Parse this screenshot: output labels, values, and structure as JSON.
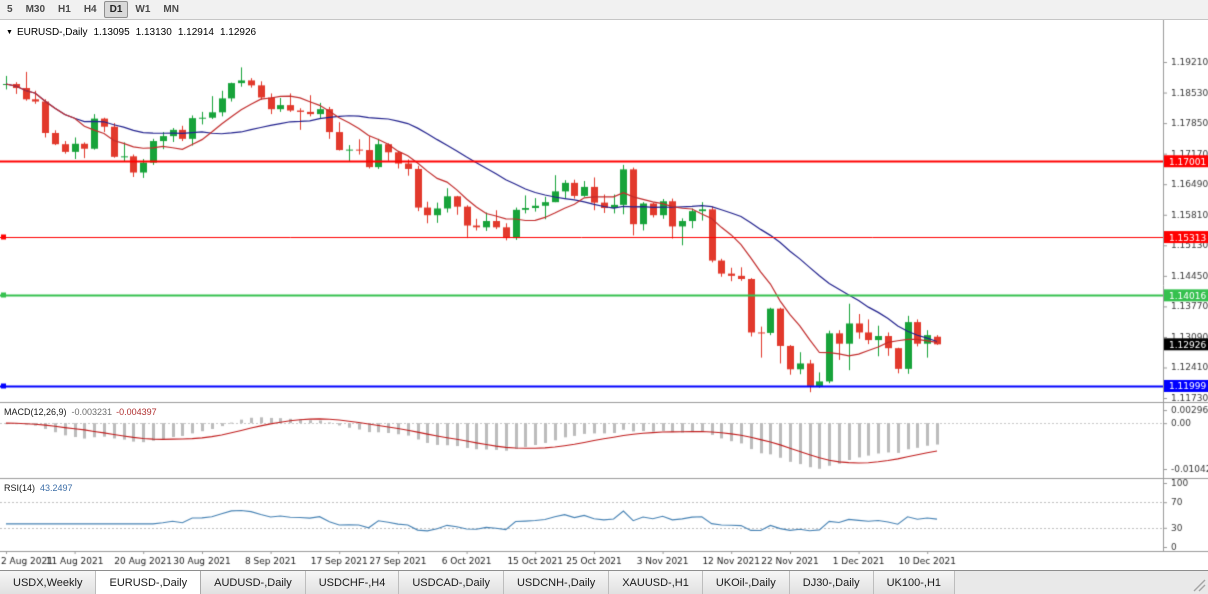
{
  "toolbar": {
    "timeframes": [
      {
        "label": "5",
        "active": false
      },
      {
        "label": "M30",
        "active": false
      },
      {
        "label": "H1",
        "active": false
      },
      {
        "label": "H4",
        "active": false
      },
      {
        "label": "D1",
        "active": true
      },
      {
        "label": "W1",
        "active": false
      },
      {
        "label": "MN",
        "active": false
      }
    ]
  },
  "chart_header": {
    "symbol_period": "EURUSD-,Daily",
    "open": "1.13095",
    "high": "1.13130",
    "low": "1.12914",
    "close": "1.12926"
  },
  "indicators": {
    "macd": {
      "label": "MACD(12,26,9)",
      "value_main": "-0.003231",
      "value_signal": "-0.004397",
      "axis_labels": [
        {
          "text": "0.002966",
          "value": 0.002966
        },
        {
          "text": "0.00",
          "value": 0
        },
        {
          "text": "-0.010422",
          "value": -0.010422
        }
      ]
    },
    "rsi": {
      "label": "RSI(14)",
      "value": "43.2497",
      "levels": [
        70,
        30
      ],
      "axis_labels": [
        {
          "text": "100",
          "value": 100
        },
        {
          "text": "70",
          "value": 70
        },
        {
          "text": "30",
          "value": 30
        },
        {
          "text": "0",
          "value": 0
        }
      ]
    }
  },
  "chart_data": {
    "type": "candlestick",
    "title": "EURUSD-,Daily",
    "ylim": [
      1.11642,
      1.20145
    ],
    "y_axis_labels": [
      "1.19210",
      "1.18530",
      "1.17850",
      "1.17170",
      "1.16490",
      "1.15810",
      "1.15130",
      "1.14450",
      "1.13770",
      "1.13090",
      "1.12410",
      "1.11730"
    ],
    "x_ticks": [
      {
        "label": "2 Aug 2021",
        "i": 0
      },
      {
        "label": "11 Aug 2021",
        "i": 7
      },
      {
        "label": "20 Aug 2021",
        "i": 14
      },
      {
        "label": "30 Aug 2021",
        "i": 20
      },
      {
        "label": "8 Sep 2021",
        "i": 27
      },
      {
        "label": "17 Sep 2021",
        "i": 34
      },
      {
        "label": "27 Sep 2021",
        "i": 40
      },
      {
        "label": "6 Oct 2021",
        "i": 47
      },
      {
        "label": "15 Oct 2021",
        "i": 54
      },
      {
        "label": "25 Oct 2021",
        "i": 60
      },
      {
        "label": "3 Nov 2021",
        "i": 67
      },
      {
        "label": "12 Nov 2021",
        "i": 74
      },
      {
        "label": "22 Nov 2021",
        "i": 80
      },
      {
        "label": "1 Dec 2021",
        "i": 87
      },
      {
        "label": "10 Dec 2021",
        "i": 94
      }
    ],
    "hlines": [
      {
        "price": 1.17001,
        "label": "1.17001",
        "color": "#ff0000",
        "width": 2,
        "handle": false
      },
      {
        "price": 1.15313,
        "label": "1.15313",
        "color": "#ff0000",
        "width": 1,
        "handle": true
      },
      {
        "price": 1.14016,
        "label": "1.14016",
        "color": "#35c14e",
        "width": 2,
        "handle": true
      },
      {
        "price": 1.11999,
        "label": "1.11999",
        "color": "#0000ff",
        "width": 2,
        "handle": true
      }
    ],
    "current_price": {
      "value": 1.12926,
      "label": "1.12926",
      "bg": "#000000"
    },
    "moving_averages": [
      {
        "name": "ma-slow",
        "period": 21,
        "color": "#22228e"
      },
      {
        "name": "ma-fast",
        "period": 8,
        "color": "#c22c2c"
      }
    ],
    "candles": [
      [
        1.187,
        1.189,
        1.186,
        1.1872
      ],
      [
        1.1872,
        1.1876,
        1.185,
        1.1863
      ],
      [
        1.1863,
        1.1899,
        1.1835,
        1.1838
      ],
      [
        1.1838,
        1.1857,
        1.1828,
        1.1833
      ],
      [
        1.1833,
        1.1838,
        1.1753,
        1.1763
      ],
      [
        1.1763,
        1.1769,
        1.1736,
        1.1738
      ],
      [
        1.1738,
        1.1745,
        1.1717,
        1.1721
      ],
      [
        1.1721,
        1.1753,
        1.1705,
        1.1739
      ],
      [
        1.1739,
        1.1742,
        1.1707,
        1.1728
      ],
      [
        1.1728,
        1.1805,
        1.1726,
        1.1795
      ],
      [
        1.1795,
        1.1797,
        1.1765,
        1.1777
      ],
      [
        1.1777,
        1.1785,
        1.1708,
        1.171
      ],
      [
        1.171,
        1.1742,
        1.17,
        1.1711
      ],
      [
        1.1711,
        1.1715,
        1.1665,
        1.1675
      ],
      [
        1.1675,
        1.1705,
        1.1663,
        1.1697
      ],
      [
        1.1697,
        1.175,
        1.1692,
        1.1745
      ],
      [
        1.1745,
        1.1765,
        1.1727,
        1.1756
      ],
      [
        1.1756,
        1.1774,
        1.1743,
        1.177
      ],
      [
        1.177,
        1.1779,
        1.1745,
        1.175
      ],
      [
        1.175,
        1.1802,
        1.1735,
        1.1796
      ],
      [
        1.1796,
        1.181,
        1.1782,
        1.1797
      ],
      [
        1.1797,
        1.1845,
        1.1794,
        1.1809
      ],
      [
        1.1809,
        1.1857,
        1.18,
        1.184
      ],
      [
        1.184,
        1.1875,
        1.1833,
        1.1874
      ],
      [
        1.1874,
        1.1909,
        1.1866,
        1.188
      ],
      [
        1.188,
        1.1885,
        1.1864,
        1.1869
      ],
      [
        1.1869,
        1.1878,
        1.1837,
        1.1842
      ],
      [
        1.1842,
        1.1851,
        1.1805,
        1.1816
      ],
      [
        1.1816,
        1.1841,
        1.181,
        1.1825
      ],
      [
        1.1825,
        1.1851,
        1.181,
        1.1813
      ],
      [
        1.1813,
        1.1818,
        1.177,
        1.181
      ],
      [
        1.181,
        1.1847,
        1.18,
        1.1805
      ],
      [
        1.1805,
        1.183,
        1.1795,
        1.1816
      ],
      [
        1.1816,
        1.1821,
        1.175,
        1.1765
      ],
      [
        1.1765,
        1.1787,
        1.1724,
        1.1725
      ],
      [
        1.1725,
        1.1736,
        1.17,
        1.1726
      ],
      [
        1.1726,
        1.1749,
        1.1715,
        1.1725
      ],
      [
        1.1725,
        1.1756,
        1.1684,
        1.1687
      ],
      [
        1.1687,
        1.175,
        1.1683,
        1.1738
      ],
      [
        1.1738,
        1.174,
        1.1701,
        1.172
      ],
      [
        1.172,
        1.1722,
        1.1684,
        1.1695
      ],
      [
        1.1695,
        1.1704,
        1.1668,
        1.1683
      ],
      [
        1.1683,
        1.169,
        1.1589,
        1.1597
      ],
      [
        1.1597,
        1.161,
        1.1562,
        1.158
      ],
      [
        1.158,
        1.1608,
        1.1563,
        1.1595
      ],
      [
        1.1595,
        1.164,
        1.1586,
        1.1622
      ],
      [
        1.1622,
        1.1623,
        1.1581,
        1.1599
      ],
      [
        1.1599,
        1.1602,
        1.1529,
        1.1557
      ],
      [
        1.1557,
        1.1572,
        1.1546,
        1.1553
      ],
      [
        1.1553,
        1.1586,
        1.1545,
        1.1567
      ],
      [
        1.1567,
        1.1591,
        1.1549,
        1.1553
      ],
      [
        1.1553,
        1.1562,
        1.1524,
        1.1529
      ],
      [
        1.1529,
        1.1597,
        1.1525,
        1.1592
      ],
      [
        1.1592,
        1.1624,
        1.1584,
        1.1596
      ],
      [
        1.1596,
        1.1618,
        1.1588,
        1.1601
      ],
      [
        1.1601,
        1.1621,
        1.1571,
        1.1609
      ],
      [
        1.1609,
        1.1669,
        1.1609,
        1.1633
      ],
      [
        1.1633,
        1.1658,
        1.1617,
        1.1652
      ],
      [
        1.1652,
        1.1659,
        1.1617,
        1.1623
      ],
      [
        1.1623,
        1.1656,
        1.1621,
        1.1643
      ],
      [
        1.1643,
        1.1664,
        1.1591,
        1.1608
      ],
      [
        1.1608,
        1.1626,
        1.1585,
        1.1596
      ],
      [
        1.1596,
        1.1626,
        1.1584,
        1.1603
      ],
      [
        1.1603,
        1.1692,
        1.1582,
        1.1682
      ],
      [
        1.1682,
        1.1686,
        1.1535,
        1.156
      ],
      [
        1.156,
        1.1609,
        1.1546,
        1.1606
      ],
      [
        1.1606,
        1.1608,
        1.1575,
        1.158
      ],
      [
        1.158,
        1.1616,
        1.1572,
        1.1611
      ],
      [
        1.1611,
        1.1617,
        1.1528,
        1.1555
      ],
      [
        1.1555,
        1.1573,
        1.1513,
        1.1567
      ],
      [
        1.1567,
        1.1595,
        1.1551,
        1.1589
      ],
      [
        1.1589,
        1.1609,
        1.1568,
        1.1593
      ],
      [
        1.1593,
        1.1599,
        1.1475,
        1.1479
      ],
      [
        1.1479,
        1.1483,
        1.1443,
        1.145
      ],
      [
        1.145,
        1.1463,
        1.1433,
        1.1445
      ],
      [
        1.1445,
        1.1464,
        1.1434,
        1.1438
      ],
      [
        1.1438,
        1.144,
        1.131,
        1.1319
      ],
      [
        1.1319,
        1.1332,
        1.1263,
        1.1318
      ],
      [
        1.1318,
        1.1374,
        1.1313,
        1.1372
      ],
      [
        1.1372,
        1.1374,
        1.125,
        1.1289
      ],
      [
        1.1289,
        1.1291,
        1.1225,
        1.1237
      ],
      [
        1.1237,
        1.1275,
        1.1226,
        1.125
      ],
      [
        1.125,
        1.1258,
        1.1186,
        1.12
      ],
      [
        1.12,
        1.123,
        1.1196,
        1.121
      ],
      [
        1.121,
        1.1323,
        1.1206,
        1.1317
      ],
      [
        1.1317,
        1.1324,
        1.1258,
        1.1294
      ],
      [
        1.1294,
        1.1383,
        1.1235,
        1.1339
      ],
      [
        1.1339,
        1.136,
        1.1305,
        1.1319
      ],
      [
        1.1319,
        1.1348,
        1.1293,
        1.1302
      ],
      [
        1.1302,
        1.1334,
        1.1266,
        1.1311
      ],
      [
        1.1311,
        1.1319,
        1.1267,
        1.1284
      ],
      [
        1.1284,
        1.1285,
        1.1228,
        1.1238
      ],
      [
        1.1238,
        1.1356,
        1.1227,
        1.1342
      ],
      [
        1.1342,
        1.1348,
        1.1288,
        1.1294
      ],
      [
        1.1294,
        1.1324,
        1.1263,
        1.1313
      ],
      [
        1.13095,
        1.1313,
        1.12914,
        1.12926
      ]
    ]
  },
  "tabs": [
    {
      "label": "USDX,Weekly",
      "active": false
    },
    {
      "label": "EURUSD-,Daily",
      "active": true
    },
    {
      "label": "AUDUSD-,Daily",
      "active": false
    },
    {
      "label": "USDCHF-,H4",
      "active": false
    },
    {
      "label": "USDCAD-,Daily",
      "active": false
    },
    {
      "label": "USDCNH-,Daily",
      "active": false
    },
    {
      "label": "XAUUSD-,H1",
      "active": false
    },
    {
      "label": "UKOil-,Daily",
      "active": false
    },
    {
      "label": "DJ30-,Daily",
      "active": false
    },
    {
      "label": "UK100-,H1",
      "active": false
    }
  ],
  "colors": {
    "bull": "#17a33a",
    "bear": "#e2392c",
    "ma_slow": "#22228e",
    "ma_fast": "#c22c2c",
    "macd_hist": "#bcbcbc",
    "macd_signal": "#c01d1d",
    "rsi_line": "#4682b4",
    "axis_text": "#3c3c3c"
  }
}
